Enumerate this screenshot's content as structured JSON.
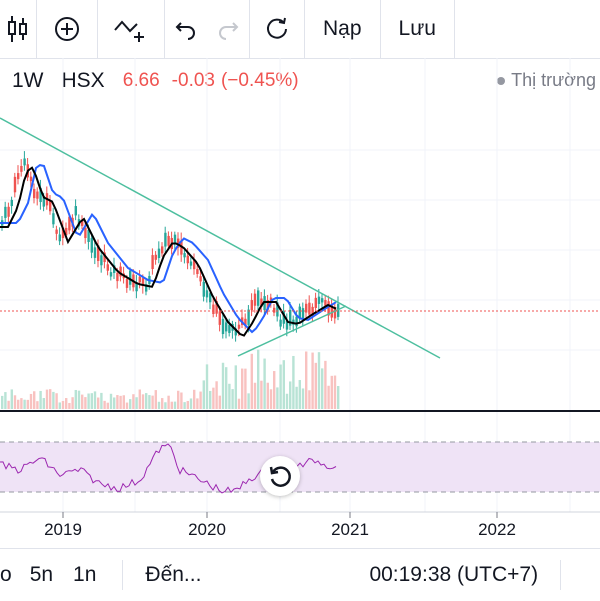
{
  "toolbar": {
    "candles_icon": "candlestick-icon",
    "add_indicator_icon": "plus-circle-icon",
    "compare_icon": "line-plus-icon",
    "undo_icon": "undo-icon",
    "redo_icon": "redo-icon",
    "reset_icon": "refresh-icon",
    "load_label": "Nạp",
    "save_label": "Lưu"
  },
  "legend": {
    "timeframe": "1W",
    "exchange": "HSX",
    "price": "6.66",
    "change": "-0.03",
    "change_pct": "(−0.45%)",
    "price_color": "#ef5350"
  },
  "market_status": {
    "label": "Thị trường"
  },
  "x_axis": {
    "labels": [
      "2019",
      "2020",
      "2021",
      "2022"
    ]
  },
  "bottom_bar": {
    "left_cut": "o",
    "range_5n": "5n",
    "range_1n": "1n",
    "goto_label": "Đến...",
    "time": "00:19:38 (UTC+7)"
  },
  "colors": {
    "up": "#26a69a",
    "down": "#ef5350",
    "ma_blue": "#2962ff",
    "ma_black": "#000000",
    "trendline": "#4dbf9f",
    "rsi_line": "#9c27b0",
    "rsi_band": "#efe3f6"
  }
}
